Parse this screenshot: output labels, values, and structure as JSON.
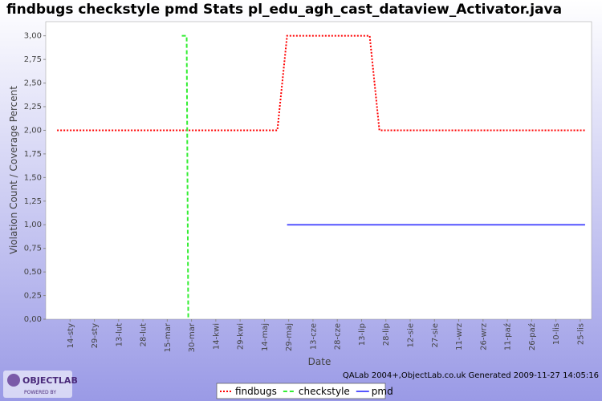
{
  "chart_data": {
    "type": "line",
    "title": "findbugs checkstyle pmd  Stats pl_edu_agh_cast_dataview_Activator.java",
    "y_label": "Violation Count / Coverage Percent",
    "x_label": "Date",
    "footer": "QALab 2004+,ObjectLab.co.uk Generated 2009-11-27 14:05:16",
    "logo_text": "OBJECTLAB",
    "logo_subtext": "POWERED BY",
    "xlim": [
      -1,
      336
    ],
    "ylim": [
      0,
      3.15
    ],
    "xticks": [
      {
        "value": 14,
        "label": "14-sty"
      },
      {
        "value": 29,
        "label": "29-sty"
      },
      {
        "value": 44,
        "label": "13-lut"
      },
      {
        "value": 59,
        "label": "28-lut"
      },
      {
        "value": 74,
        "label": "15-mar"
      },
      {
        "value": 89,
        "label": "30-mar"
      },
      {
        "value": 104,
        "label": "14-kwi"
      },
      {
        "value": 119,
        "label": "29-kwi"
      },
      {
        "value": 134,
        "label": "14-maj"
      },
      {
        "value": 149,
        "label": "29-maj"
      },
      {
        "value": 164,
        "label": "13-cze"
      },
      {
        "value": 179,
        "label": "28-cze"
      },
      {
        "value": 194,
        "label": "13-lip"
      },
      {
        "value": 209,
        "label": "28-lip"
      },
      {
        "value": 224,
        "label": "12-sie"
      },
      {
        "value": 239,
        "label": "27-sie"
      },
      {
        "value": 254,
        "label": "11-wrz"
      },
      {
        "value": 269,
        "label": "26-wrz"
      },
      {
        "value": 284,
        "label": "11-paź"
      },
      {
        "value": 299,
        "label": "26-paź"
      },
      {
        "value": 314,
        "label": "10-lis"
      },
      {
        "value": 329,
        "label": "25-lis"
      }
    ],
    "yticks": [
      {
        "value": 0,
        "label": "0,00"
      },
      {
        "value": 0.25,
        "label": "0,25"
      },
      {
        "value": 0.5,
        "label": "0,50"
      },
      {
        "value": 0.75,
        "label": "0,75"
      },
      {
        "value": 1,
        "label": "1,00"
      },
      {
        "value": 1.25,
        "label": "1,25"
      },
      {
        "value": 1.5,
        "label": "1,50"
      },
      {
        "value": 1.75,
        "label": "1,75"
      },
      {
        "value": 2,
        "label": "2,00"
      },
      {
        "value": 2.25,
        "label": "2,25"
      },
      {
        "value": 2.5,
        "label": "2,50"
      },
      {
        "value": 2.75,
        "label": "2,75"
      },
      {
        "value": 3,
        "label": "3,00"
      }
    ],
    "grid": false,
    "series": [
      {
        "name": "findbugs",
        "color": "#ff0000",
        "dash": "2,2",
        "x": [
          6,
          142,
          148,
          199,
          205,
          332
        ],
        "values": [
          2,
          2,
          3,
          3,
          2,
          2
        ]
      },
      {
        "name": "checkstyle",
        "color": "#33ee33",
        "dash": "5,3",
        "x": [
          83,
          86,
          87
        ],
        "values": [
          3,
          3,
          0
        ]
      },
      {
        "name": "pmd",
        "color": "#5555ff",
        "dash": "none",
        "x": [
          148,
          332
        ],
        "values": [
          1,
          1
        ]
      }
    ]
  }
}
